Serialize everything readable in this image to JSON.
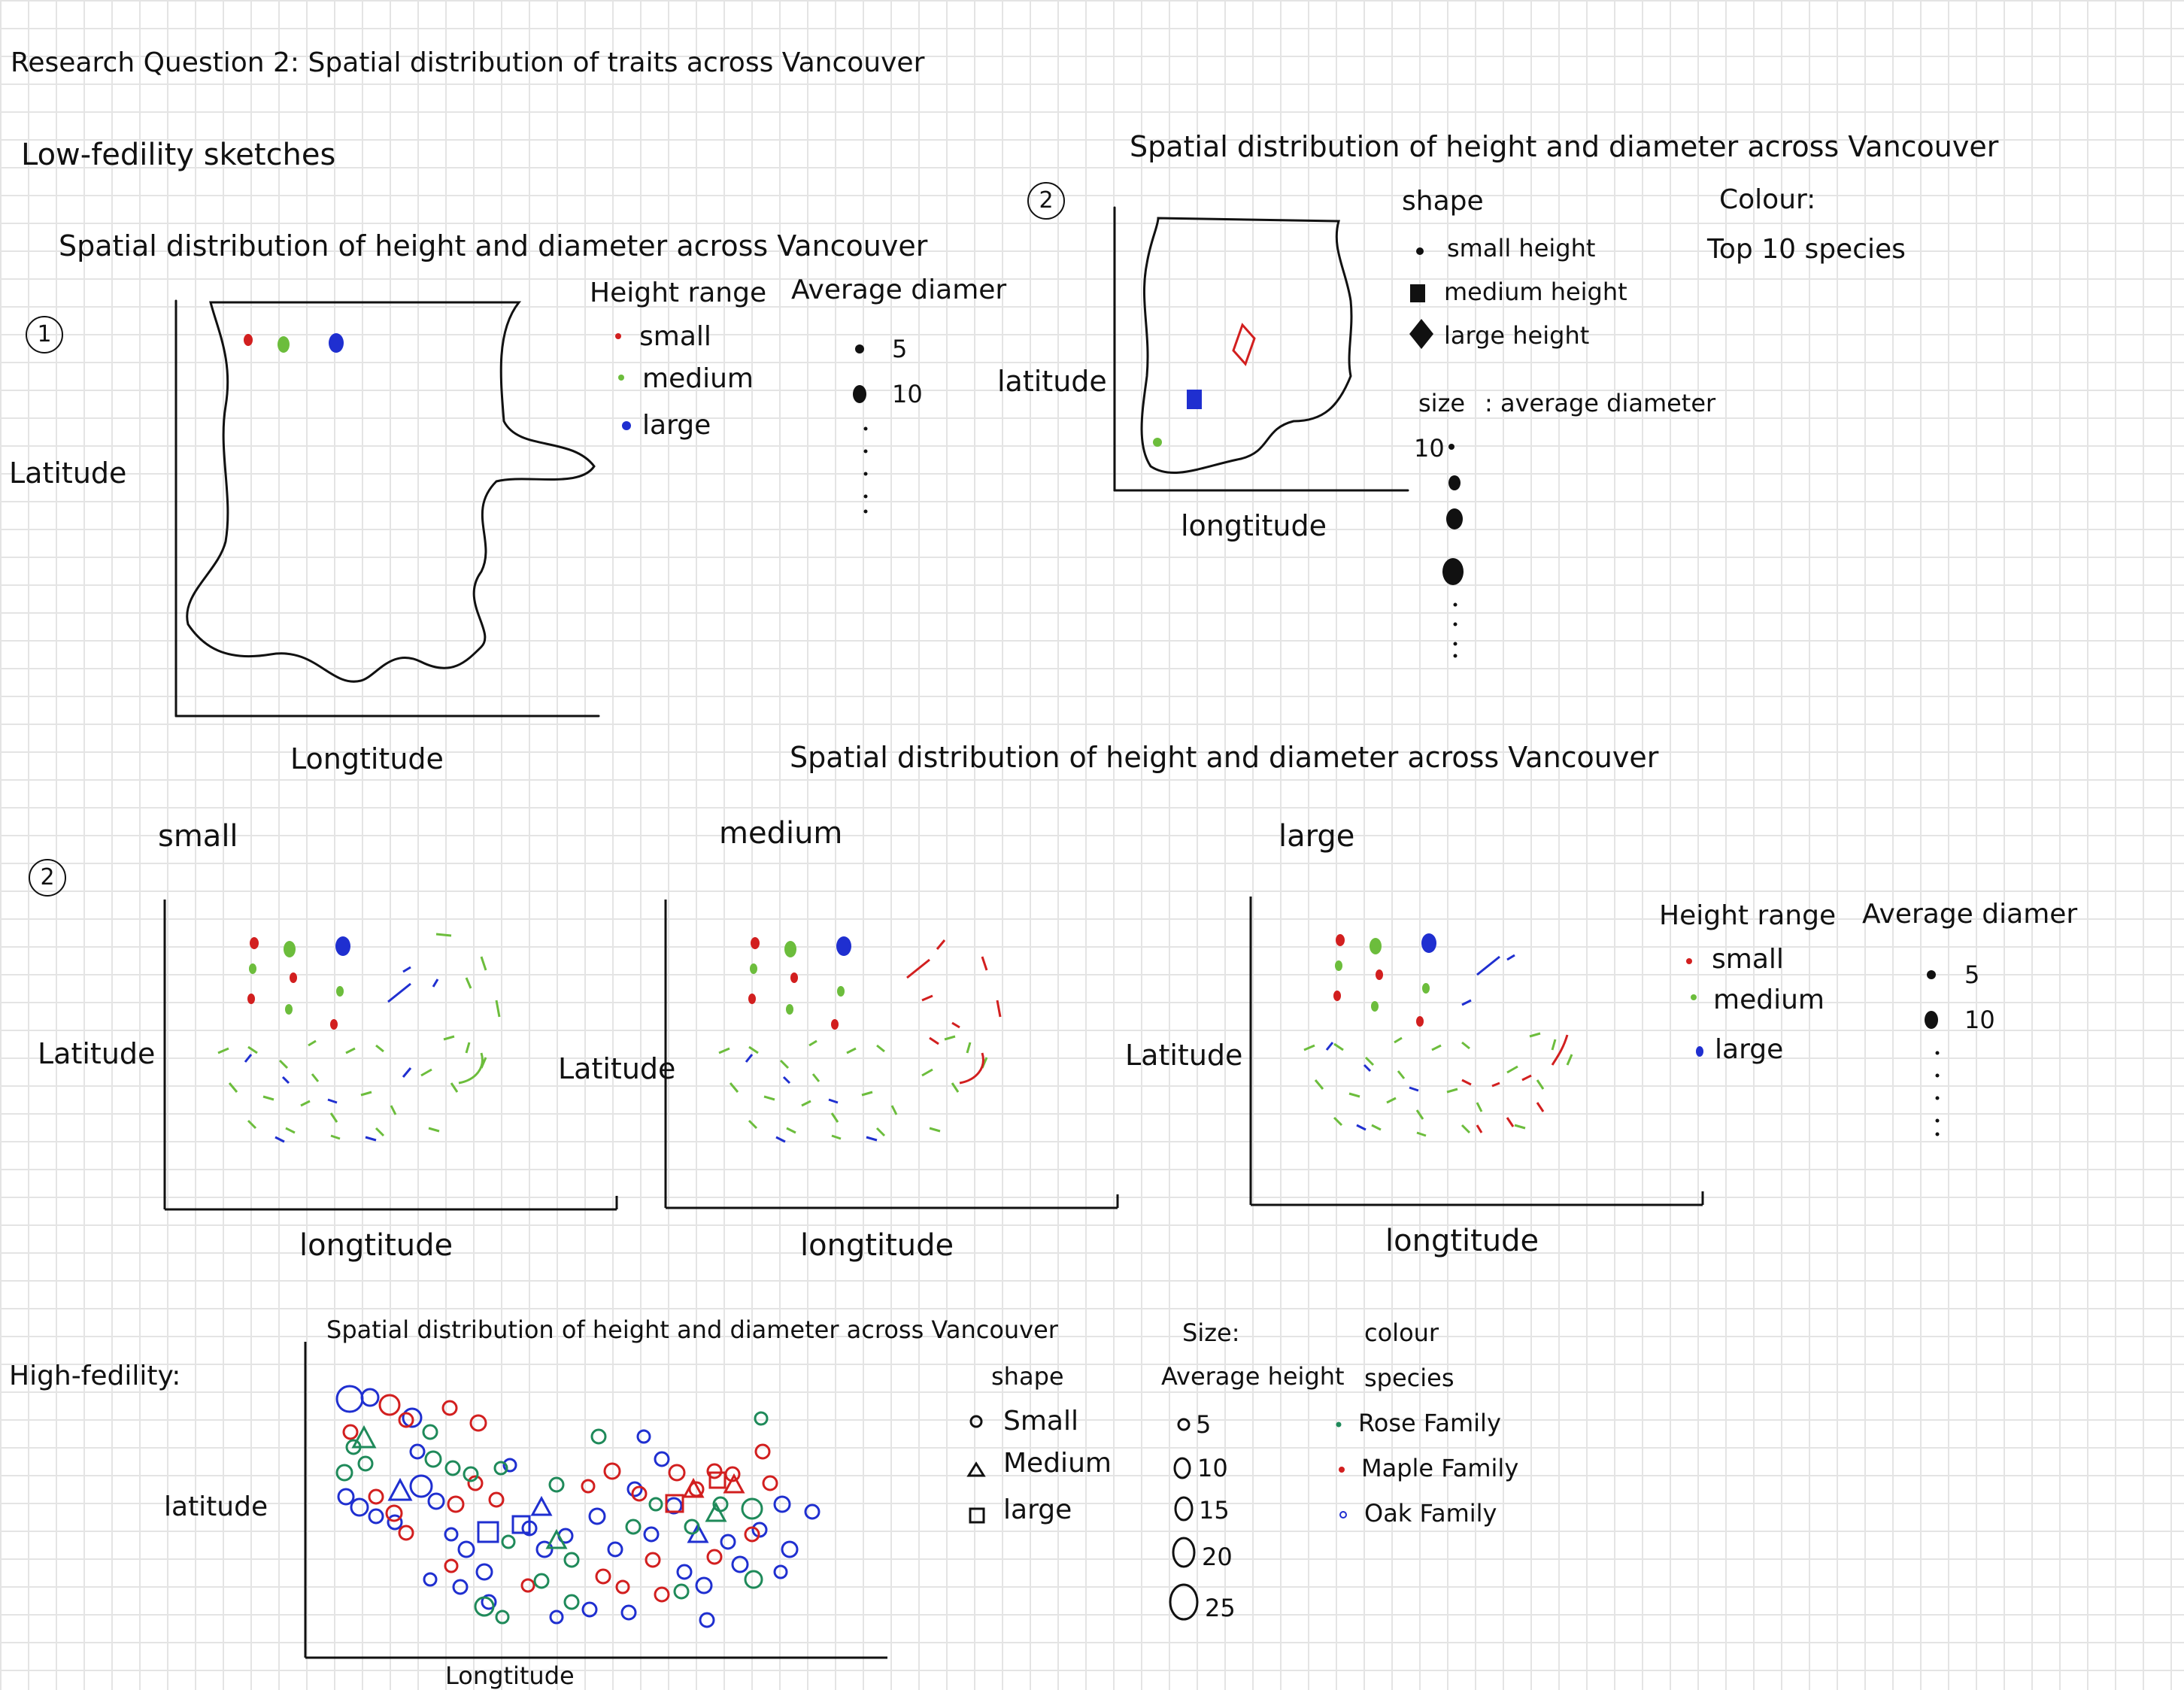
{
  "title": "Research Question 2: Spatial distribution of traits across Vancouver",
  "low_label": "Low-fedility sketches",
  "sketch1": {
    "number": "1",
    "title": "Spatial distribution of height and diameter across Vancouver",
    "xlabel": "Longtitude",
    "ylabel": "Latitude",
    "legend_height_title": "Height range",
    "legend_height_items": [
      "small",
      "medium",
      "large"
    ],
    "legend_diam_title": "Average diamer",
    "legend_diam_items": [
      "5",
      "10"
    ]
  },
  "sketch2": {
    "number": "2",
    "title": "Spatial distribution of height and diameter across Vancouver",
    "xlabel": "longtitude",
    "ylabel": "latitude",
    "shape_title": "shape",
    "shape_items": [
      "small height",
      "medium height",
      "large height"
    ],
    "colour_title": "Colour:",
    "colour_value": "Top 10 species",
    "size_title": "size",
    "size_value": ": average diameter",
    "size_start": "10"
  },
  "sketch3": {
    "number": "2",
    "title": "Spatial distribution of height and diameter across Vancouver",
    "panels": [
      "small",
      "medium",
      "large"
    ],
    "xlabel": "longtitude",
    "ylabel": "Latitude",
    "legend_height_title": "Height range",
    "legend_height_items": [
      "small",
      "medium",
      "large"
    ],
    "legend_diam_title": "Average diamer",
    "legend_diam_items": [
      "5",
      "10"
    ]
  },
  "high": {
    "label": "High-fedility:",
    "title": "Spatial distribution of height and diameter across Vancouver",
    "xlabel": "Longtitude",
    "ylabel": "latitude",
    "shape_title": "shape",
    "shape_items": [
      "Small",
      "Medium",
      "large"
    ],
    "size_title": "Size:",
    "size_subtitle": "Average height",
    "size_items": [
      "5",
      "10",
      "15",
      "20",
      "25"
    ],
    "colour_title": "colour",
    "colour_subtitle": "species",
    "colour_items": [
      "Rose Family",
      "Maple Family",
      "Oak Family"
    ]
  },
  "colors": {
    "ink": "#111111",
    "red": "#d21f1f",
    "green": "#6cbd3c",
    "blue": "#1f2fd0",
    "teal": "#1f8a5a",
    "grid": "#e4e4e4"
  }
}
